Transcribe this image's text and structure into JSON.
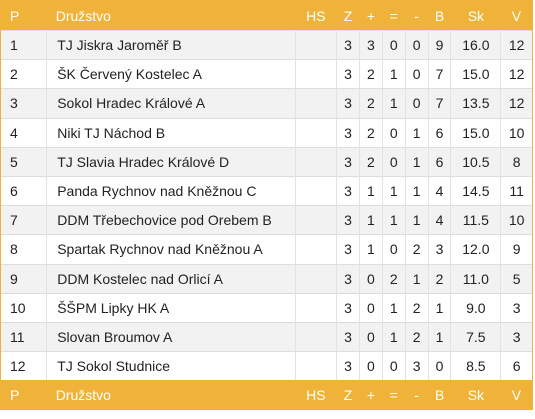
{
  "header": {
    "p": "P",
    "team": "Družstvo",
    "hs": "HS",
    "z": "Z",
    "plus": "+",
    "eq": "=",
    "minus": "-",
    "b": "B",
    "sk": "Sk",
    "v": "V"
  },
  "rows": [
    {
      "p": "1",
      "team": "TJ Jiskra Jaroměř B",
      "hs": "",
      "z": "3",
      "plus": "3",
      "eq": "0",
      "minus": "0",
      "b": "9",
      "sk": "16.0",
      "v": "12"
    },
    {
      "p": "2",
      "team": "ŠK Červený Kostelec A",
      "hs": "",
      "z": "3",
      "plus": "2",
      "eq": "1",
      "minus": "0",
      "b": "7",
      "sk": "15.0",
      "v": "12"
    },
    {
      "p": "3",
      "team": "Sokol Hradec Králové A",
      "hs": "",
      "z": "3",
      "plus": "2",
      "eq": "1",
      "minus": "0",
      "b": "7",
      "sk": "13.5",
      "v": "12"
    },
    {
      "p": "4",
      "team": "Niki TJ Náchod B",
      "hs": "",
      "z": "3",
      "plus": "2",
      "eq": "0",
      "minus": "1",
      "b": "6",
      "sk": "15.0",
      "v": "10"
    },
    {
      "p": "5",
      "team": "TJ Slavia Hradec Králové D",
      "hs": "",
      "z": "3",
      "plus": "2",
      "eq": "0",
      "minus": "1",
      "b": "6",
      "sk": "10.5",
      "v": "8"
    },
    {
      "p": "6",
      "team": "Panda Rychnov nad Kněžnou C",
      "hs": "",
      "z": "3",
      "plus": "1",
      "eq": "1",
      "minus": "1",
      "b": "4",
      "sk": "14.5",
      "v": "11"
    },
    {
      "p": "7",
      "team": "DDM Třebechovice pod Orebem B",
      "hs": "",
      "z": "3",
      "plus": "1",
      "eq": "1",
      "minus": "1",
      "b": "4",
      "sk": "11.5",
      "v": "10"
    },
    {
      "p": "8",
      "team": "Spartak Rychnov nad Kněžnou A",
      "hs": "",
      "z": "3",
      "plus": "1",
      "eq": "0",
      "minus": "2",
      "b": "3",
      "sk": "12.0",
      "v": "9"
    },
    {
      "p": "9",
      "team": "DDM Kostelec nad Orlicí A",
      "hs": "",
      "z": "3",
      "plus": "0",
      "eq": "2",
      "minus": "1",
      "b": "2",
      "sk": "11.0",
      "v": "5"
    },
    {
      "p": "10",
      "team": "ŠŠPM Lipky HK A",
      "hs": "",
      "z": "3",
      "plus": "0",
      "eq": "1",
      "minus": "2",
      "b": "1",
      "sk": "9.0",
      "v": "3"
    },
    {
      "p": "11",
      "team": "Slovan Broumov A",
      "hs": "",
      "z": "3",
      "plus": "0",
      "eq": "1",
      "minus": "2",
      "b": "1",
      "sk": "7.5",
      "v": "3"
    },
    {
      "p": "12",
      "team": "TJ Sokol Studnice",
      "hs": "",
      "z": "3",
      "plus": "0",
      "eq": "0",
      "minus": "3",
      "b": "0",
      "sk": "8.5",
      "v": "6"
    }
  ],
  "colors": {
    "header_bg": "#f0b33a",
    "header_text": "#ffffff",
    "row_alt": "#f2f2f2"
  }
}
